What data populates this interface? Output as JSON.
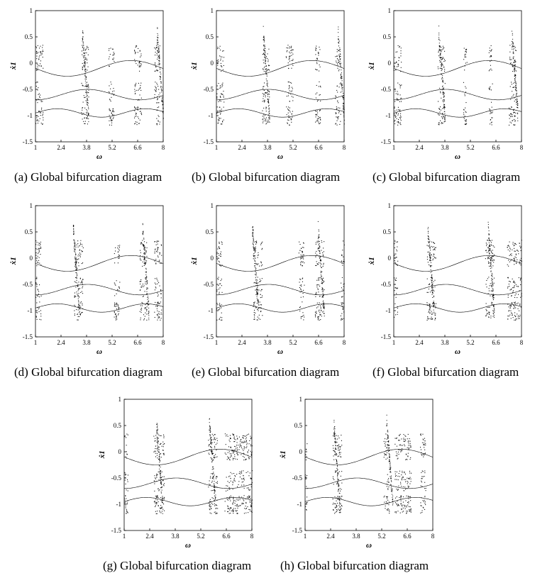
{
  "figure": {
    "panels": [
      {
        "id": "a",
        "caption": "(a) Global bifurcation diagram"
      },
      {
        "id": "b",
        "caption": "(b) Global bifurcation diagram"
      },
      {
        "id": "c",
        "caption": "(c) Global bifurcation diagram"
      },
      {
        "id": "d",
        "caption": "(d) Global bifurcation diagram"
      },
      {
        "id": "e",
        "caption": "(e) Global bifurcation diagram"
      },
      {
        "id": "f",
        "caption": "(f) Global bifurcation diagram"
      },
      {
        "id": "g",
        "caption": "(g) Global bifurcation diagram"
      },
      {
        "id": "h",
        "caption": "(h) Global bifurcation diagram"
      }
    ]
  },
  "chart_data": [
    {
      "type": "scatter",
      "panel": "a",
      "title": "",
      "xlabel": "ω",
      "ylabel": "ẋ1",
      "xlim": [
        1,
        8
      ],
      "ylim": [
        -1.5,
        1
      ],
      "xticks": [
        "1",
        "2.4",
        "3.8",
        "5.2",
        "6.6",
        "8"
      ],
      "yticks": [
        "-1.5",
        "-1",
        "-0.5",
        "0",
        "0.5",
        "1"
      ],
      "chaotic_bands": [
        [
          1.0,
          1.4
        ],
        [
          3.5,
          3.9
        ],
        [
          5.0,
          5.3
        ],
        [
          6.4,
          6.8
        ],
        [
          7.5,
          7.8
        ]
      ],
      "peaks": [
        3.6,
        7.7
      ]
    },
    {
      "type": "scatter",
      "panel": "b",
      "title": "",
      "xlabel": "ω",
      "ylabel": "ẋ1",
      "xlim": [
        1,
        8
      ],
      "ylim": [
        -1.5,
        1
      ],
      "xticks": [
        "1",
        "2.4",
        "3.8",
        "5.2",
        "6.6",
        "8"
      ],
      "yticks": [
        "-1.5",
        "-1",
        "-0.5",
        "0",
        "0.5",
        "1"
      ],
      "chaotic_bands": [
        [
          1.0,
          1.4
        ],
        [
          3.5,
          3.9
        ],
        [
          4.8,
          5.2
        ],
        [
          6.4,
          6.7
        ],
        [
          7.5,
          7.8
        ]
      ],
      "peaks": [
        3.6,
        7.7
      ]
    },
    {
      "type": "scatter",
      "panel": "c",
      "title": "",
      "xlabel": "ω",
      "ylabel": "ẋ1",
      "xlim": [
        1,
        8
      ],
      "ylim": [
        -1.5,
        1
      ],
      "xticks": [
        "1",
        "2.4",
        "3.8",
        "5.2",
        "6.6",
        "8"
      ],
      "yticks": [
        "-1.5",
        "-1",
        "-0.5",
        "0",
        "0.5",
        "1"
      ],
      "chaotic_bands": [
        [
          1.0,
          1.4
        ],
        [
          3.4,
          3.8
        ],
        [
          4.8,
          5.0
        ],
        [
          6.2,
          6.4
        ],
        [
          7.3,
          7.7
        ]
      ],
      "peaks": [
        3.5,
        7.5
      ]
    },
    {
      "type": "scatter",
      "panel": "d",
      "title": "",
      "xlabel": "ω",
      "ylabel": "ẋ1",
      "xlim": [
        1,
        8
      ],
      "ylim": [
        -1.5,
        1
      ],
      "xticks": [
        "1",
        "2.4",
        "3.8",
        "5.2",
        "6.6",
        "8"
      ],
      "yticks": [
        "-1.5",
        "-1",
        "-0.5",
        "0",
        "0.5",
        "1"
      ],
      "chaotic_bands": [
        [
          1.0,
          1.3
        ],
        [
          3.1,
          3.6
        ],
        [
          5.3,
          5.6
        ],
        [
          6.7,
          7.1
        ],
        [
          7.5,
          7.9
        ]
      ],
      "peaks": [
        3.1,
        6.9
      ]
    },
    {
      "type": "scatter",
      "panel": "e",
      "title": "",
      "xlabel": "ω",
      "ylabel": "ẋ1",
      "xlim": [
        1,
        8
      ],
      "ylim": [
        -1.5,
        1
      ],
      "xticks": [
        "1",
        "2.4",
        "3.8",
        "5.2",
        "6.6",
        "8"
      ],
      "yticks": [
        "-1.5",
        "-1",
        "-0.5",
        "0",
        "0.5",
        "1"
      ],
      "chaotic_bands": [
        [
          1.0,
          1.3
        ],
        [
          3.0,
          3.5
        ],
        [
          5.5,
          5.8
        ],
        [
          6.4,
          6.9
        ],
        [
          7.8,
          8.0
        ]
      ],
      "peaks": [
        3.0,
        6.6
      ]
    },
    {
      "type": "scatter",
      "panel": "f",
      "title": "",
      "xlabel": "ω",
      "ylabel": "ẋ1",
      "xlim": [
        1,
        8
      ],
      "ylim": [
        -1.5,
        1
      ],
      "xticks": [
        "1",
        "2.4",
        "3.8",
        "5.2",
        "6.6",
        "8"
      ],
      "yticks": [
        "-1.5",
        "-1",
        "-0.5",
        "0",
        "0.5",
        "1"
      ],
      "chaotic_bands": [
        [
          1.0,
          1.2
        ],
        [
          2.8,
          3.3
        ],
        [
          6.0,
          6.5
        ],
        [
          7.2,
          8.0
        ]
      ],
      "peaks": [
        2.9,
        6.2
      ]
    },
    {
      "type": "scatter",
      "panel": "g",
      "title": "",
      "xlabel": "ω",
      "ylabel": "ẋ1",
      "xlim": [
        1,
        8
      ],
      "ylim": [
        -1.5,
        1
      ],
      "xticks": [
        "1",
        "2.4",
        "3.8",
        "5.2",
        "6.6",
        "8"
      ],
      "yticks": [
        "-1.5",
        "-1",
        "-0.5",
        "0",
        "0.5",
        "1"
      ],
      "chaotic_bands": [
        [
          1.0,
          1.2
        ],
        [
          2.6,
          3.2
        ],
        [
          5.6,
          6.1
        ],
        [
          6.5,
          8.0
        ]
      ],
      "peaks": [
        2.8,
        5.7
      ]
    },
    {
      "type": "scatter",
      "panel": "h",
      "title": "",
      "xlabel": "ω",
      "ylabel": "ẋ1",
      "xlim": [
        1,
        8
      ],
      "ylim": [
        -1.5,
        1
      ],
      "xticks": [
        "1",
        "2.4",
        "3.8",
        "5.2",
        "6.6",
        "8"
      ],
      "yticks": [
        "-1.5",
        "-1",
        "-0.5",
        "0",
        "0.5",
        "1"
      ],
      "chaotic_bands": [
        [
          1.0,
          1.1
        ],
        [
          2.5,
          3.0
        ],
        [
          5.3,
          5.6
        ],
        [
          5.9,
          6.8
        ],
        [
          7.3,
          7.6
        ]
      ],
      "peaks": [
        2.6,
        5.5
      ]
    }
  ]
}
